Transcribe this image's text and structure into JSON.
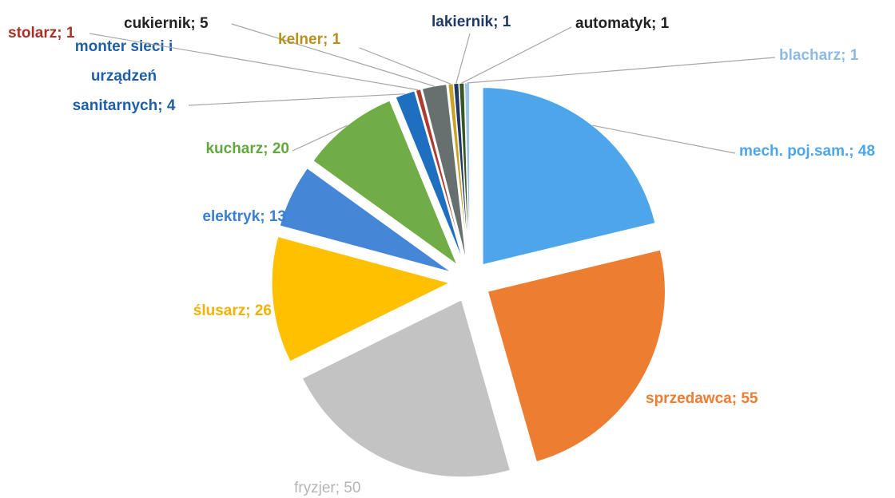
{
  "chart_data": {
    "type": "pie",
    "labels": [
      "mech. poj.sam.; 48",
      "sprzedawca; 55",
      "fryzjer; 50",
      "ślusarz; 26",
      "elektryk; 13",
      "kucharz; 20",
      "monter sieci i urządzeń sanitarnych; 4",
      "stolarz; 1",
      "cukiernik; 5",
      "kelner; 1",
      "lakiernik; 1",
      "automatyk; 1",
      "blacharz; 1"
    ],
    "values": [
      48,
      55,
      50,
      26,
      13,
      20,
      4,
      1,
      5,
      1,
      1,
      1,
      1
    ],
    "colors": [
      "#4ea6ea",
      "#ed7d31",
      "#c3c3c3",
      "#ffc000",
      "#4586d6",
      "#70ad47",
      "#1f6fc0",
      "#b03a2e",
      "#66706f",
      "#c9a227",
      "#1f3864",
      "#375623",
      "#9dc3e6"
    ],
    "label_colors": [
      "#4ea6ea",
      "#ed7d31",
      "#b5b5b5",
      "#f2b200",
      "#3a7fd0",
      "#62a83e",
      "#1f5fa8",
      "#a93226",
      "#222222",
      "#b8911c",
      "#1f3864",
      "#222222",
      "#8dbbe3"
    ],
    "exploded": true
  }
}
